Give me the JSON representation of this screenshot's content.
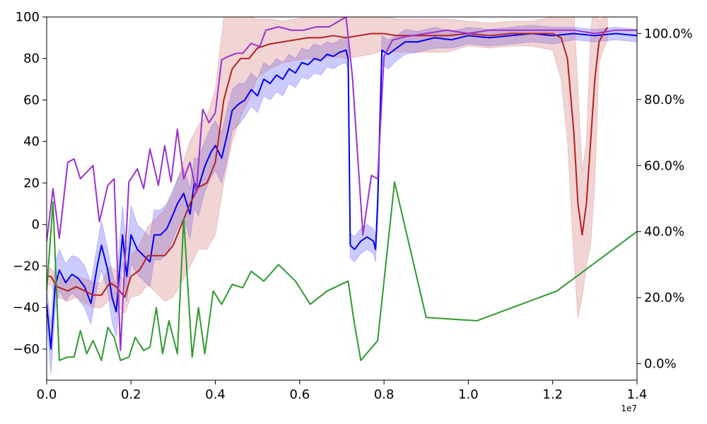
{
  "chart_data": {
    "type": "line",
    "x_exponent_label": "1e7",
    "xlim": [
      0,
      14000000
    ],
    "ylim_left": [
      -75,
      100
    ],
    "ylim_right": [
      -5,
      105
    ],
    "x_ticks": [
      {
        "value": 0,
        "label": "0.0"
      },
      {
        "value": 2000000,
        "label": "0.2"
      },
      {
        "value": 4000000,
        "label": "0.4"
      },
      {
        "value": 6000000,
        "label": "0.6"
      },
      {
        "value": 8000000,
        "label": "0.8"
      },
      {
        "value": 10000000,
        "label": "1.0"
      },
      {
        "value": 12000000,
        "label": "1.2"
      },
      {
        "value": 14000000,
        "label": "1.4"
      }
    ],
    "y_ticks_left": [
      {
        "value": -60,
        "label": "−60"
      },
      {
        "value": -40,
        "label": "−40"
      },
      {
        "value": -20,
        "label": "−20"
      },
      {
        "value": 0,
        "label": "0"
      },
      {
        "value": 20,
        "label": "20"
      },
      {
        "value": 40,
        "label": "40"
      },
      {
        "value": 60,
        "label": "60"
      },
      {
        "value": 80,
        "label": "80"
      },
      {
        "value": 100,
        "label": "100"
      }
    ],
    "y_ticks_right": [
      {
        "value": 0,
        "label": "0.0%"
      },
      {
        "value": 20,
        "label": "20.0%"
      },
      {
        "value": 40,
        "label": "40.0%"
      },
      {
        "value": 60,
        "label": "60.0%"
      },
      {
        "value": 80,
        "label": "80.0%"
      },
      {
        "value": 100,
        "label": "100.0%"
      }
    ],
    "series": [
      {
        "axis": "left",
        "color": "#0000ee",
        "band_color": "#4444ff",
        "x": [
          0,
          100000,
          200000,
          300000,
          450000,
          600000,
          750000,
          900000,
          1050000,
          1200000,
          1300000,
          1450000,
          1550000,
          1650000,
          1800000,
          1900000,
          2000000,
          2150000,
          2300000,
          2450000,
          2550000,
          2700000,
          2850000,
          3000000,
          3100000,
          3250000,
          3400000,
          3500000,
          3600000,
          3750000,
          3900000,
          4000000,
          4150000,
          4300000,
          4400000,
          4550000,
          4700000,
          4850000,
          5000000,
          5150000,
          5300000,
          5450000,
          5600000,
          5750000,
          5900000,
          6050000,
          6200000,
          6350000,
          6500000,
          6650000,
          6800000,
          6950000,
          7100000,
          7150000,
          7200000,
          7300000,
          7450000,
          7600000,
          7750000,
          7800000,
          7850000,
          7950000,
          8100000,
          8300000,
          8500000,
          8800000,
          9200000,
          9600000,
          10000000,
          10500000,
          11000000,
          11500000,
          12000000,
          12500000,
          13000000,
          13500000,
          14000000
        ],
        "y": [
          -38,
          -60,
          -30,
          -22,
          -28,
          -24,
          -26,
          -30,
          -38,
          -20,
          -10,
          -22,
          -35,
          -42,
          -5,
          -25,
          -5,
          -12,
          -15,
          -18,
          -5,
          -5,
          -2,
          5,
          10,
          15,
          5,
          20,
          18,
          28,
          35,
          38,
          32,
          45,
          55,
          58,
          60,
          65,
          62,
          70,
          68,
          72,
          70,
          75,
          73,
          78,
          77,
          80,
          79,
          82,
          81,
          83,
          84,
          80,
          -10,
          -12,
          -8,
          -6,
          -8,
          -12,
          10,
          84,
          82,
          85,
          88,
          88,
          90,
          89,
          91,
          90,
          91,
          92,
          91,
          92,
          91,
          92,
          91
        ],
        "band": [
          8,
          12,
          12,
          10,
          9,
          9,
          10,
          10,
          10,
          10,
          12,
          10,
          12,
          12,
          14,
          12,
          14,
          12,
          12,
          12,
          12,
          12,
          12,
          12,
          12,
          12,
          12,
          12,
          14,
          12,
          12,
          12,
          12,
          12,
          10,
          10,
          8,
          8,
          8,
          8,
          8,
          8,
          8,
          7,
          7,
          7,
          7,
          7,
          7,
          6,
          6,
          6,
          6,
          6,
          6,
          6,
          6,
          6,
          6,
          6,
          8,
          7,
          7,
          6,
          6,
          5,
          5,
          4,
          4,
          4,
          4,
          4,
          4,
          3,
          3,
          3,
          3
        ]
      },
      {
        "axis": "left",
        "color": "#b22222",
        "band_color": "#cc6666",
        "x": [
          0,
          100000,
          250000,
          500000,
          700000,
          900000,
          1100000,
          1300000,
          1500000,
          1650000,
          1850000,
          2000000,
          2200000,
          2400000,
          2600000,
          2800000,
          3000000,
          3200000,
          3400000,
          3600000,
          3800000,
          4000000,
          4200000,
          4400000,
          4600000,
          4800000,
          5000000,
          5300000,
          5600000,
          5900000,
          6200000,
          6500000,
          6800000,
          7100000,
          7400000,
          7700000,
          8000000,
          8300000,
          8600000,
          9000000,
          9500000,
          10000000,
          10500000,
          11000000,
          11500000,
          12000000,
          12200000,
          12350000,
          12500000,
          12600000,
          12700000,
          12800000,
          12900000,
          13000000,
          13100000,
          13200000,
          13300000
        ],
        "y": [
          -25,
          -25,
          -30,
          -32,
          -30,
          -32,
          -34,
          -34,
          -28,
          -30,
          -35,
          -25,
          -22,
          -15,
          -15,
          -15,
          -10,
          0,
          10,
          18,
          20,
          30,
          60,
          75,
          80,
          80,
          85,
          87,
          88,
          89,
          90,
          90,
          91,
          90,
          91,
          92,
          92,
          91,
          91,
          91,
          91,
          92,
          91,
          92,
          92,
          92,
          90,
          80,
          45,
          10,
          -5,
          10,
          40,
          70,
          88,
          92,
          95
        ],
        "band": [
          4,
          4,
          5,
          5,
          5,
          6,
          6,
          6,
          8,
          8,
          8,
          10,
          12,
          14,
          18,
          22,
          25,
          28,
          30,
          30,
          32,
          35,
          40,
          35,
          28,
          20,
          14,
          12,
          10,
          10,
          10,
          10,
          10,
          10,
          10,
          10,
          8,
          8,
          8,
          8,
          8,
          6,
          6,
          6,
          6,
          8,
          20,
          40,
          60,
          55,
          30,
          30,
          50,
          50,
          10,
          8,
          6
        ]
      },
      {
        "axis": "right",
        "color": "#9b30d0",
        "x": [
          0,
          150000,
          300000,
          500000,
          650000,
          800000,
          1100000,
          1250000,
          1450000,
          1600000,
          1750000,
          1950000,
          2150000,
          2300000,
          2450000,
          2650000,
          2800000,
          2950000,
          3100000,
          3250000,
          3400000,
          3550000,
          3700000,
          3850000,
          4000000,
          4150000,
          4300000,
          4500000,
          4650000,
          4850000,
          5050000,
          5200000,
          5500000,
          5800000,
          6100000,
          6400000,
          6700000,
          7100000,
          7250000,
          7500000,
          7700000,
          7850000,
          8000000,
          8200000,
          8500000,
          9000000,
          9500000,
          10000000,
          10500000,
          11000000,
          11500000,
          12000000,
          12500000,
          13000000,
          13500000,
          14000000
        ],
        "y": [
          37,
          53,
          38,
          61,
          62,
          56,
          60,
          43,
          54,
          56,
          4,
          55,
          59,
          53,
          65,
          54,
          66,
          55,
          71,
          56,
          61,
          52,
          77,
          73,
          76,
          92,
          93,
          94,
          94,
          97,
          96,
          101,
          102,
          101,
          101,
          102,
          102,
          105,
          87,
          39,
          57,
          56,
          93,
          98,
          99,
          100,
          101,
          100,
          101,
          101,
          101,
          101,
          101,
          100,
          101,
          101
        ]
      },
      {
        "axis": "right",
        "color": "#2e9a2e",
        "x": [
          0,
          150000,
          300000,
          500000,
          650000,
          800000,
          950000,
          1100000,
          1300000,
          1450000,
          1600000,
          1750000,
          1950000,
          2100000,
          2300000,
          2450000,
          2600000,
          2750000,
          2900000,
          3100000,
          3250000,
          3450000,
          3600000,
          3750000,
          3950000,
          4150000,
          4400000,
          4650000,
          4850000,
          5150000,
          5500000,
          5900000,
          6250000,
          6650000,
          7150000,
          7300000,
          7450000,
          7650000,
          7850000,
          8250000,
          9000000,
          10200000,
          12100000,
          14000000
        ],
        "y": [
          22,
          49,
          1,
          2,
          2,
          10,
          3,
          7,
          1,
          11,
          8,
          1,
          2,
          8,
          4,
          5,
          17,
          3,
          13,
          3,
          44,
          2,
          17,
          3,
          22,
          18,
          24,
          23,
          28,
          25,
          30,
          25,
          18,
          22,
          25,
          12,
          1,
          4,
          7,
          55,
          14,
          13,
          22,
          40
        ]
      }
    ]
  }
}
